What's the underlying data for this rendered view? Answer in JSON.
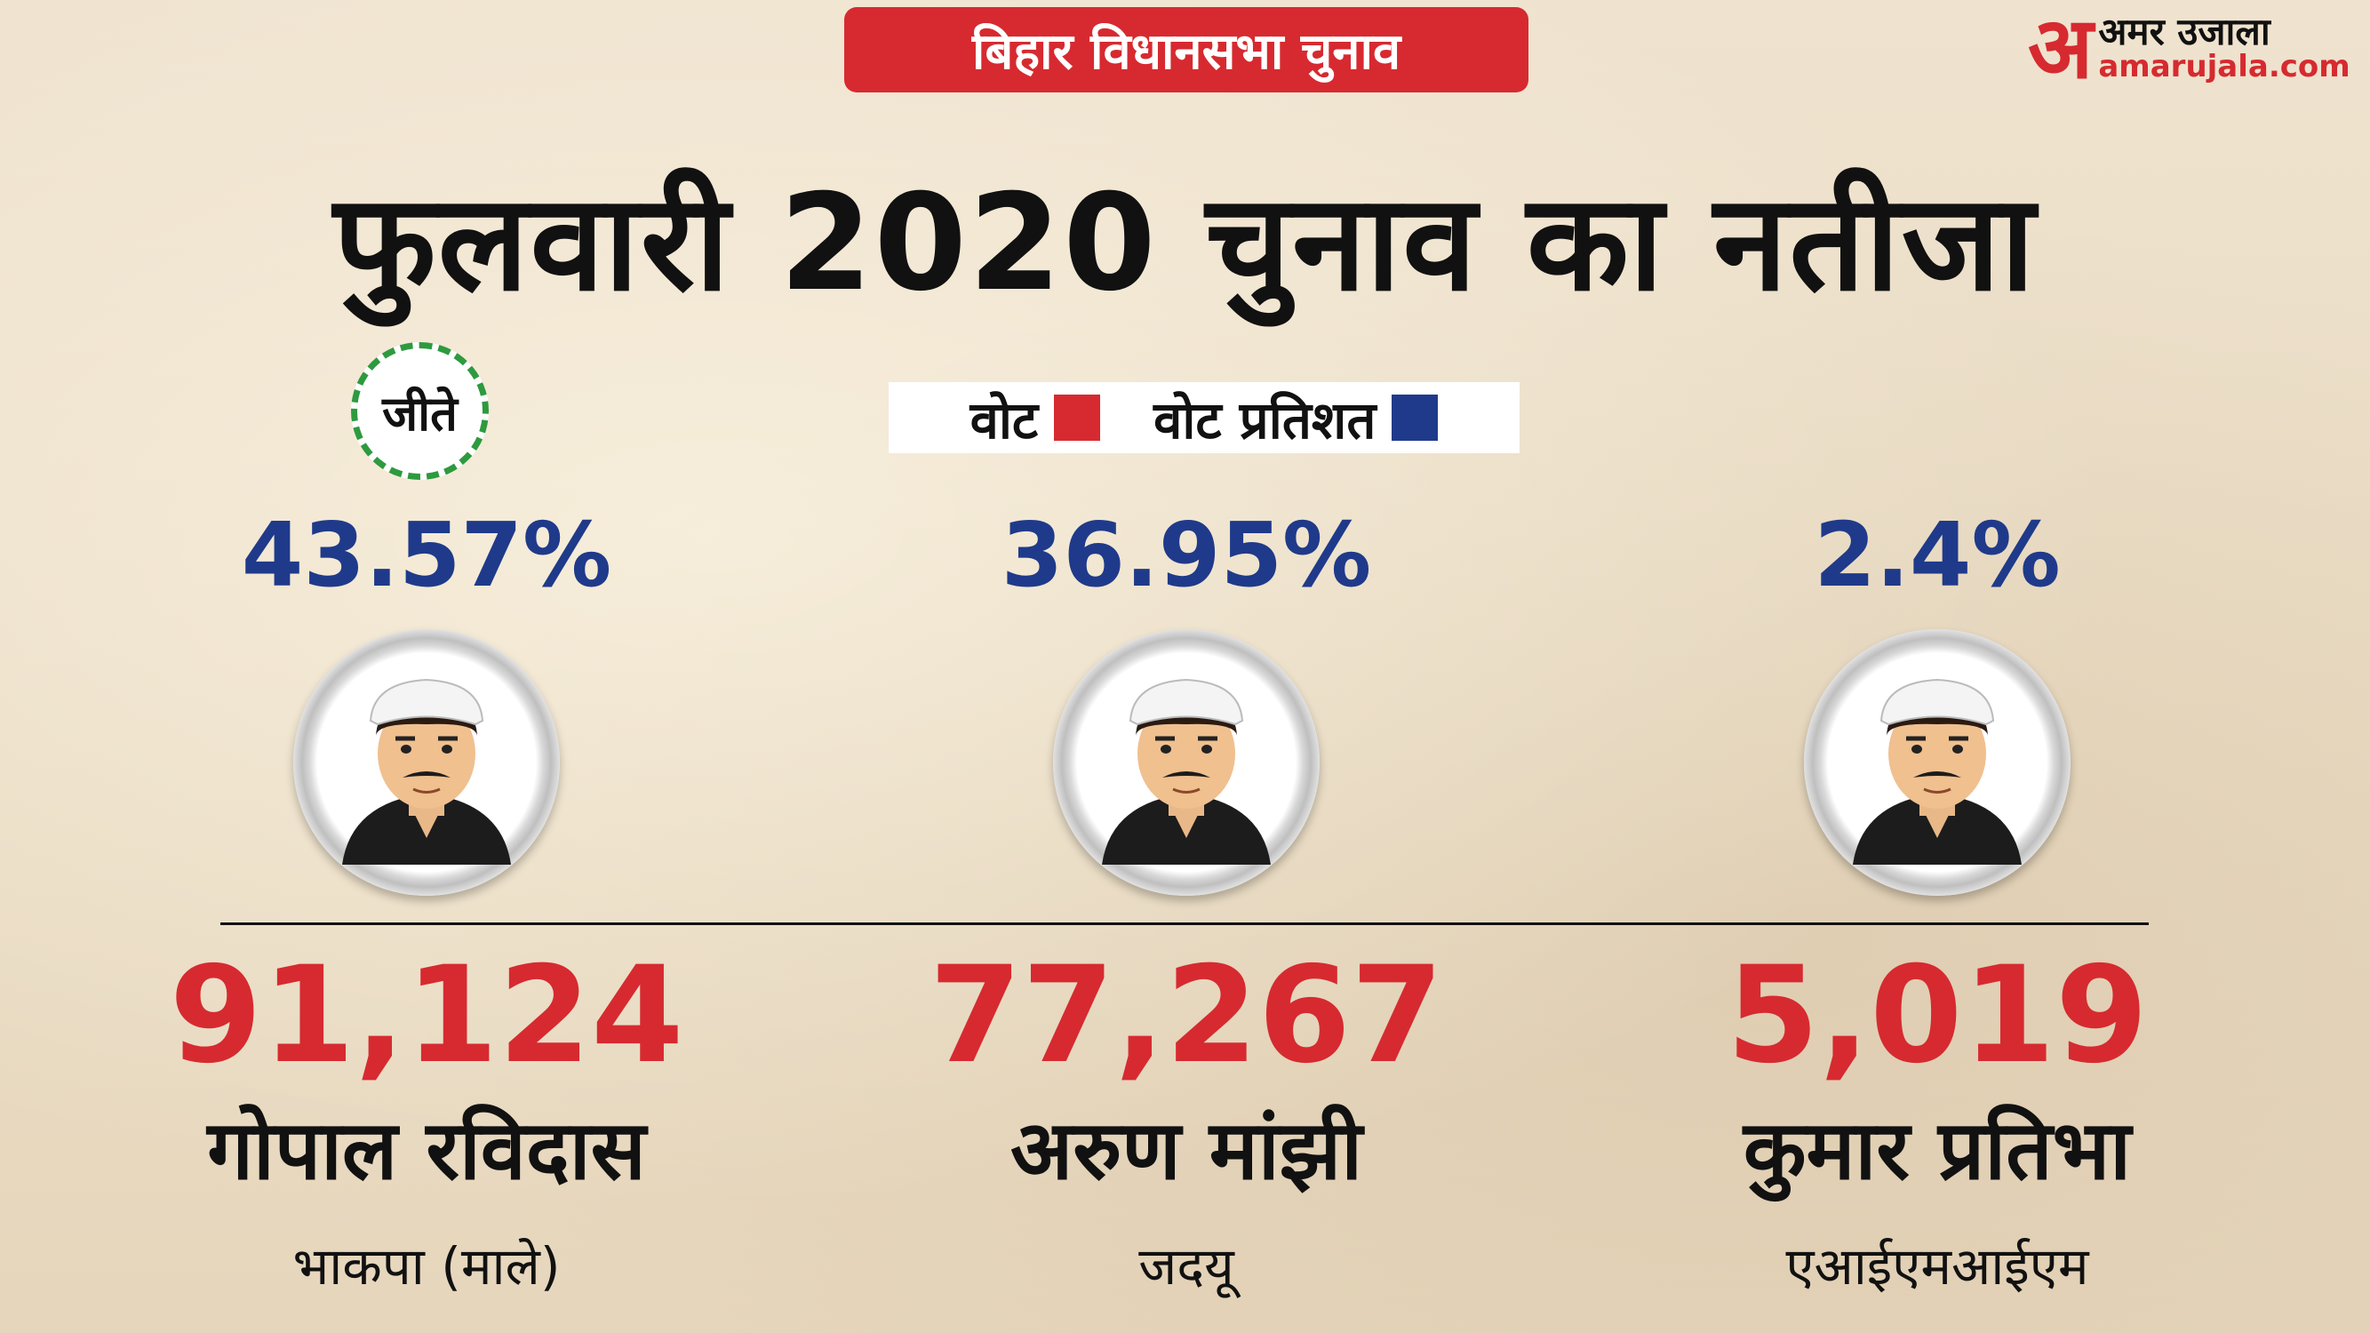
{
  "badge": "बिहार विधानसभा चुनाव",
  "logo": {
    "mark": "अ",
    "brand": "अमर उजाला",
    "site": "amarujala.com"
  },
  "title": "फुलवारी 2020 चुनाव का नतीजा",
  "winner_label": "जीते",
  "legend": {
    "votes_label": "वोट",
    "percent_label": "वोट प्रतिशत",
    "votes_color": "#d62a30",
    "percent_color": "#1f3a8a"
  },
  "candidates": [
    {
      "percent": "43.57%",
      "votes": "91,124",
      "name": "गोपाल रविदास",
      "party": "भाकपा (माले)"
    },
    {
      "percent": "36.95%",
      "votes": "77,267",
      "name": "अरुण मांझी",
      "party": "जदयू"
    },
    {
      "percent": "2.4%",
      "votes": "5,019",
      "name": "कुमार प्रतिभा",
      "party": "एआईएमआईएम"
    }
  ]
}
